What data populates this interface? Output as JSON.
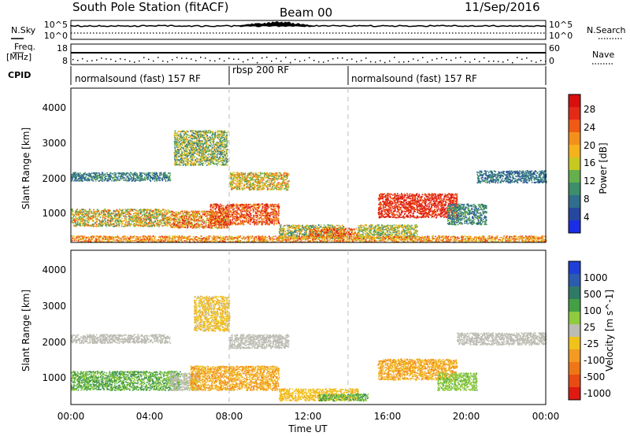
{
  "header": {
    "title": "South Pole Station (fitACF)",
    "beam": "Beam 00",
    "date": "11/Sep/2016"
  },
  "strip": {
    "nsky_label": "N.Sky",
    "nsearch_label": "N.Search",
    "freq_label_1": "Freq.",
    "freq_label_2": "[MHz]",
    "nave_label": "Nave",
    "cpid_label": "CPID",
    "noise_left_ticks": [
      "10^5",
      "10^0"
    ],
    "noise_right_ticks": [
      "10^5",
      "10^0"
    ],
    "freq_ticks": [
      "18",
      "8"
    ],
    "nave_ticks": [
      "60",
      "0"
    ]
  },
  "cpid_segments": [
    {
      "label": "normalsound (fast) 157 RF",
      "start_hour": 0,
      "end_hour": 8
    },
    {
      "label": "rbsp 200 RF",
      "start_hour": 8,
      "end_hour": 14
    },
    {
      "label": "normalsound (fast) 157 RF",
      "start_hour": 14,
      "end_hour": 24
    }
  ],
  "axes": {
    "x_label": "Time UT",
    "x_ticks": [
      "00:00",
      "04:00",
      "08:00",
      "12:00",
      "16:00",
      "20:00",
      "00:00"
    ],
    "y_label": "Slant Range [km]",
    "y_ticks": [
      "1000",
      "2000",
      "3000",
      "4000"
    ]
  },
  "colors": {
    "power": [
      "#1a2ee6",
      "#26479f",
      "#2f6e8d",
      "#3d8e6a",
      "#64b04c",
      "#c8c823",
      "#f6b21d",
      "#f3901c",
      "#f05a14",
      "#e32a17",
      "#d90f0f"
    ],
    "velocity": [
      "#1f3fd6",
      "#2c5cae",
      "#2f7a66",
      "#44a045",
      "#8fcb3e",
      "#bcbcb2",
      "#f0c21c",
      "#f39a22",
      "#ef7616",
      "#e84b13",
      "#de1a12"
    ]
  },
  "chart_data": [
    {
      "type": "heatmap",
      "name": "power",
      "colorbar_label": "Power [dB]",
      "colorbar_ticks": [
        "4",
        "8",
        "12",
        "16",
        "20",
        "24",
        "28"
      ],
      "value_range": [
        0,
        30
      ],
      "xlim_hours": [
        0,
        24
      ],
      "ylim_km": [
        180,
        4600
      ],
      "scatter_regions": [
        {
          "t0": 0.0,
          "t1": 5.0,
          "r0": 650,
          "r1": 1150,
          "v0": 8,
          "v1": 24
        },
        {
          "t0": 0.0,
          "t1": 5.0,
          "r0": 1950,
          "r1": 2200,
          "v0": 4,
          "v1": 12
        },
        {
          "t0": 5.0,
          "t1": 8.0,
          "r0": 600,
          "r1": 1100,
          "v0": 12,
          "v1": 28
        },
        {
          "t0": 5.2,
          "t1": 7.9,
          "r0": 2400,
          "r1": 3400,
          "v0": 6,
          "v1": 20
        },
        {
          "t0": 7.0,
          "t1": 10.5,
          "r0": 700,
          "r1": 1300,
          "v0": 18,
          "v1": 30
        },
        {
          "t0": 8.0,
          "t1": 11.0,
          "r0": 1700,
          "r1": 2200,
          "v0": 10,
          "v1": 24
        },
        {
          "t0": 10.5,
          "t1": 13.8,
          "r0": 300,
          "r1": 700,
          "v0": 6,
          "v1": 22
        },
        {
          "t0": 12.0,
          "t1": 14.5,
          "r0": 350,
          "r1": 600,
          "v0": 16,
          "v1": 30
        },
        {
          "t0": 14.5,
          "t1": 17.5,
          "r0": 300,
          "r1": 700,
          "v0": 8,
          "v1": 20
        },
        {
          "t0": 15.5,
          "t1": 19.5,
          "r0": 900,
          "r1": 1600,
          "v0": 22,
          "v1": 30
        },
        {
          "t0": 19.0,
          "t1": 21.0,
          "r0": 700,
          "r1": 1300,
          "v0": 4,
          "v1": 14
        },
        {
          "t0": 20.5,
          "t1": 24.0,
          "r0": 1900,
          "r1": 2250,
          "v0": 4,
          "v1": 10
        },
        {
          "t0": 0.0,
          "t1": 24.0,
          "r0": 200,
          "r1": 380,
          "v0": 14,
          "v1": 26
        }
      ]
    },
    {
      "type": "heatmap",
      "name": "velocity",
      "colorbar_label": "Velocity [m s^-1]",
      "colorbar_ticks": [
        "1000",
        "500",
        "100",
        "25",
        "-25",
        "-100",
        "-500",
        "-1000"
      ],
      "value_range": [
        -1000,
        1000
      ],
      "xlim_hours": [
        0,
        24
      ],
      "ylim_km": [
        180,
        4600
      ],
      "scatter_regions": [
        {
          "t0": 0.0,
          "t1": 5.5,
          "r0": 600,
          "r1": 1150,
          "v0": 100,
          "v1": 500
        },
        {
          "t0": 0.0,
          "t1": 5.0,
          "r0": 1950,
          "r1": 2200,
          "v0": -25,
          "v1": 25
        },
        {
          "t0": 5.0,
          "t1": 6.5,
          "r0": 600,
          "r1": 1100,
          "v0": 25,
          "v1": 100
        },
        {
          "t0": 6.0,
          "t1": 10.5,
          "r0": 600,
          "r1": 1300,
          "v0": -500,
          "v1": -100
        },
        {
          "t0": 6.2,
          "t1": 8.0,
          "r0": 2300,
          "r1": 3300,
          "v0": -300,
          "v1": -50
        },
        {
          "t0": 8.0,
          "t1": 11.0,
          "r0": 1800,
          "r1": 2200,
          "v0": -25,
          "v1": 25
        },
        {
          "t0": 10.5,
          "t1": 14.5,
          "r0": 300,
          "r1": 650,
          "v0": -300,
          "v1": -100
        },
        {
          "t0": 12.5,
          "t1": 15.0,
          "r0": 300,
          "r1": 500,
          "v0": 100,
          "v1": 500
        },
        {
          "t0": 15.5,
          "t1": 19.5,
          "r0": 900,
          "r1": 1500,
          "v0": -500,
          "v1": -100
        },
        {
          "t0": 18.5,
          "t1": 20.5,
          "r0": 600,
          "r1": 1100,
          "v0": 100,
          "v1": 300
        },
        {
          "t0": 19.5,
          "t1": 24.0,
          "r0": 1900,
          "r1": 2250,
          "v0": -25,
          "v1": 25
        }
      ]
    }
  ]
}
